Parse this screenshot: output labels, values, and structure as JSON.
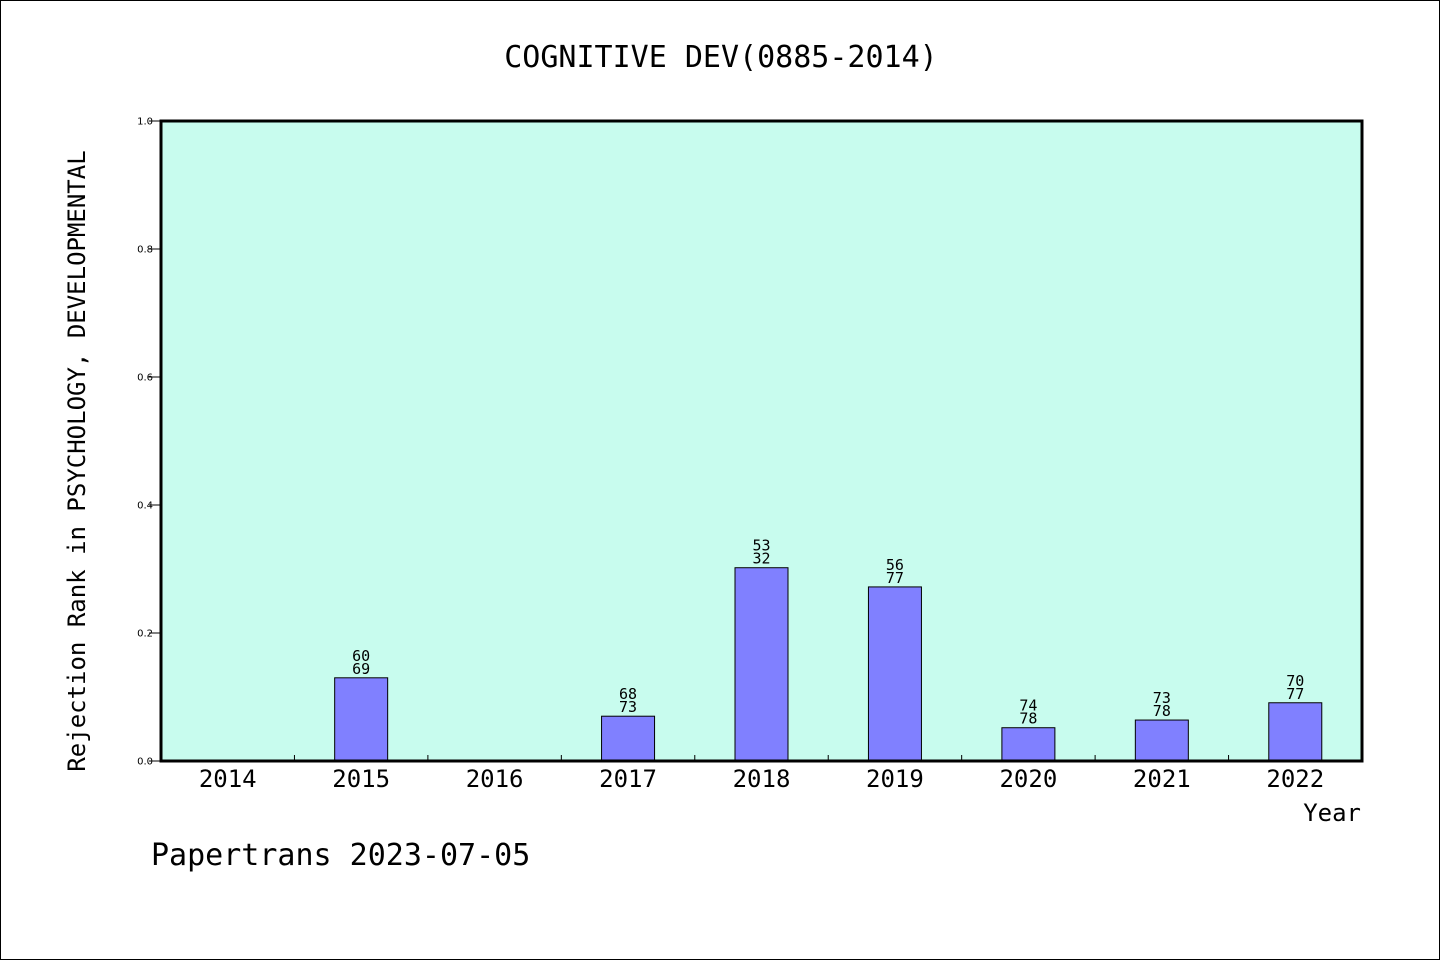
{
  "chart_data": {
    "type": "bar",
    "title": "COGNITIVE DEV(0885-2014)",
    "xlabel": "Year",
    "ylabel": "Rejection Rank in PSYCHOLOGY, DEVELOPMENTAL",
    "ylim": [
      0,
      1.0
    ],
    "yticks": [
      "0.0",
      "0.2",
      "0.4",
      "0.6",
      "0.8",
      "1.0"
    ],
    "grid": false,
    "colors": {
      "plot_background": "#c8fcee",
      "bar_fill": "#8080ff",
      "bar_stroke": "#000000"
    },
    "categories": [
      "2014",
      "2015",
      "2016",
      "2017",
      "2018",
      "2019",
      "2020",
      "2021",
      "2022"
    ],
    "values": [
      null,
      0.13,
      null,
      0.07,
      0.302,
      0.272,
      0.052,
      0.064,
      0.091
    ],
    "labels": [
      null,
      [
        "60",
        "69"
      ],
      null,
      [
        "68",
        "73"
      ],
      [
        "53",
        "32"
      ],
      [
        "56",
        "77"
      ],
      [
        "74",
        "78"
      ],
      [
        "73",
        "78"
      ],
      [
        "70",
        "77"
      ]
    ]
  },
  "footer": "Papertrans 2023-07-05"
}
